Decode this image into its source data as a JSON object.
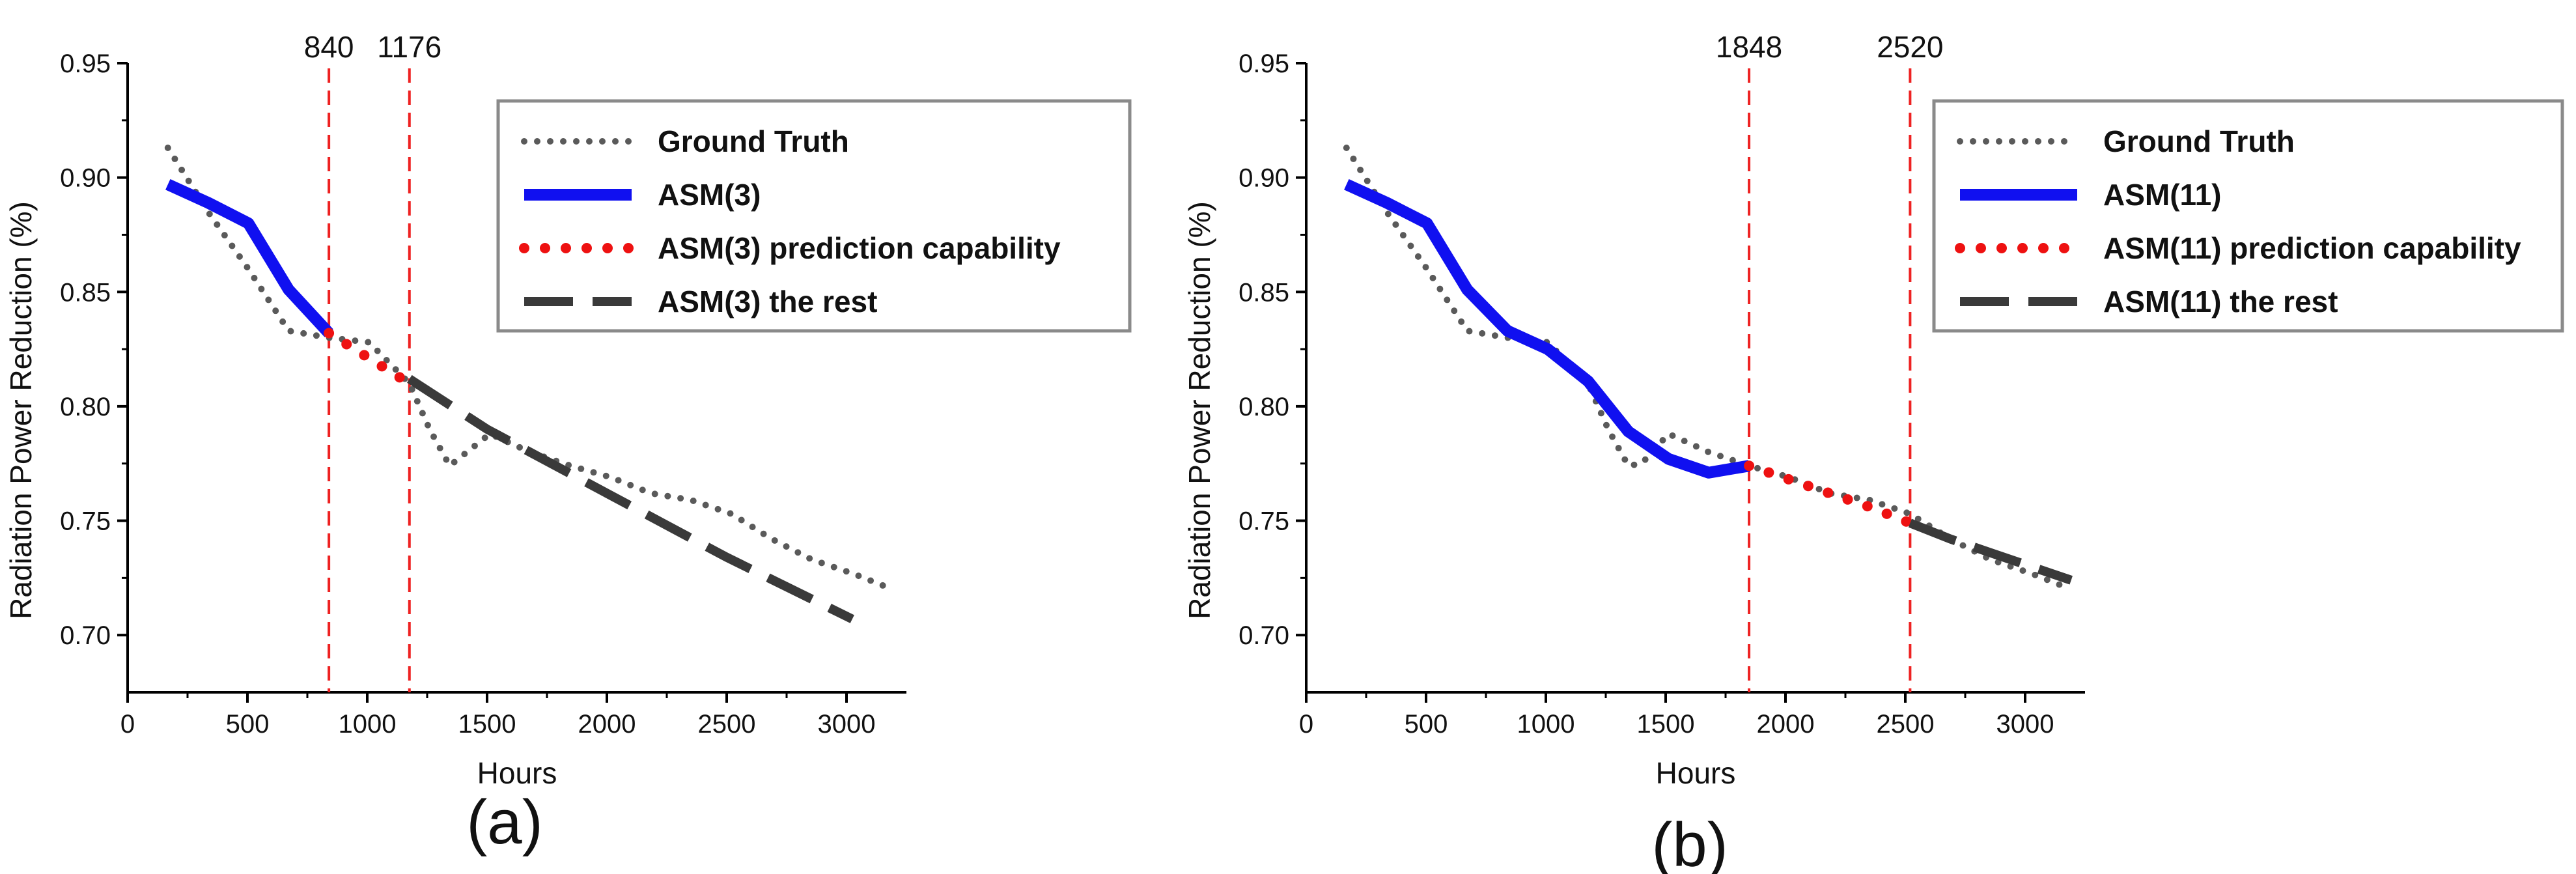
{
  "chart_data": [
    {
      "type": "line",
      "panel_label": "(a)",
      "xlabel": "Hours",
      "ylabel": "Radiation Power Reduction (%)",
      "xlim": [
        0,
        3250
      ],
      "ylim": [
        0.675,
        0.95
      ],
      "x_ticks": [
        "0",
        "500",
        "1000",
        "1500",
        "2000",
        "2500",
        "3000"
      ],
      "y_ticks": [
        "0.70",
        "0.75",
        "0.80",
        "0.85",
        "0.90",
        "0.95"
      ],
      "vlines": [
        {
          "x": 840,
          "label": "840"
        },
        {
          "x": 1176,
          "label": "1176"
        }
      ],
      "legend_position": "top-right",
      "series": [
        {
          "name": "Ground Truth",
          "style": "dotted-gray",
          "x": [
            168,
            336,
            504,
            672,
            840,
            1008,
            1176,
            1260,
            1344,
            1512,
            1680,
            1848,
            2016,
            2184,
            2352,
            2520,
            2688,
            2856,
            3024,
            3192
          ],
          "y": [
            0.913,
            0.885,
            0.86,
            0.833,
            0.83,
            0.828,
            0.81,
            0.79,
            0.774,
            0.788,
            0.78,
            0.774,
            0.769,
            0.762,
            0.759,
            0.753,
            0.742,
            0.733,
            0.727,
            0.72
          ]
        },
        {
          "name": "ASM(3)",
          "style": "solid-blue",
          "x": [
            168,
            336,
            504,
            672,
            840
          ],
          "y": [
            0.897,
            0.889,
            0.88,
            0.851,
            0.832
          ]
        },
        {
          "name": "ASM(3) prediction capability",
          "style": "dotted-red",
          "x": [
            840,
            1008,
            1176
          ],
          "y": [
            0.832,
            0.821,
            0.81
          ]
        },
        {
          "name": "ASM(3) the rest",
          "style": "dashed-dark",
          "x": [
            1176,
            1500,
            2000,
            2500,
            3024
          ],
          "y": [
            0.812,
            0.79,
            0.762,
            0.734,
            0.707
          ]
        }
      ]
    },
    {
      "type": "line",
      "panel_label": "(b)",
      "xlabel": "Hours",
      "ylabel": "Radiation Power Reduction (%)",
      "xlim": [
        0,
        3250
      ],
      "ylim": [
        0.675,
        0.95
      ],
      "x_ticks": [
        "0",
        "500",
        "1000",
        "1500",
        "2000",
        "2500",
        "3000"
      ],
      "y_ticks": [
        "0.70",
        "0.75",
        "0.80",
        "0.85",
        "0.90",
        "0.95"
      ],
      "vlines": [
        {
          "x": 1848,
          "label": "1848"
        },
        {
          "x": 2520,
          "label": "2520"
        }
      ],
      "legend_position": "top-right",
      "series": [
        {
          "name": "Ground Truth",
          "style": "dotted-gray",
          "x": [
            168,
            336,
            504,
            672,
            840,
            1008,
            1176,
            1260,
            1344,
            1400,
            1512,
            1680,
            1848,
            2016,
            2184,
            2352,
            2520,
            2688,
            2856,
            3024,
            3192
          ],
          "y": [
            0.913,
            0.885,
            0.86,
            0.833,
            0.83,
            0.828,
            0.81,
            0.79,
            0.774,
            0.775,
            0.788,
            0.78,
            0.774,
            0.769,
            0.762,
            0.759,
            0.753,
            0.742,
            0.733,
            0.727,
            0.72
          ]
        },
        {
          "name": "ASM(11)",
          "style": "solid-blue",
          "x": [
            168,
            336,
            504,
            672,
            840,
            1008,
            1176,
            1344,
            1512,
            1680,
            1848
          ],
          "y": [
            0.897,
            0.889,
            0.88,
            0.851,
            0.833,
            0.825,
            0.811,
            0.789,
            0.777,
            0.771,
            0.774
          ]
        },
        {
          "name": "ASM(11) prediction capability",
          "style": "dotted-red",
          "x": [
            1848,
            2016,
            2184,
            2352,
            2520
          ],
          "y": [
            0.774,
            0.768,
            0.762,
            0.756,
            0.749
          ]
        },
        {
          "name": "ASM(11) the rest",
          "style": "dashed-dark",
          "x": [
            2520,
            2688,
            2856,
            3024,
            3192
          ],
          "y": [
            0.749,
            0.742,
            0.736,
            0.73,
            0.724
          ]
        }
      ]
    }
  ],
  "colors": {
    "ground_truth": "#5a5a5a",
    "asm_solid": "#1010f0",
    "prediction": "#ee1111",
    "rest": "#3a3a3a",
    "vline": "#ee2222",
    "legend_border": "#8a8a8a"
  }
}
